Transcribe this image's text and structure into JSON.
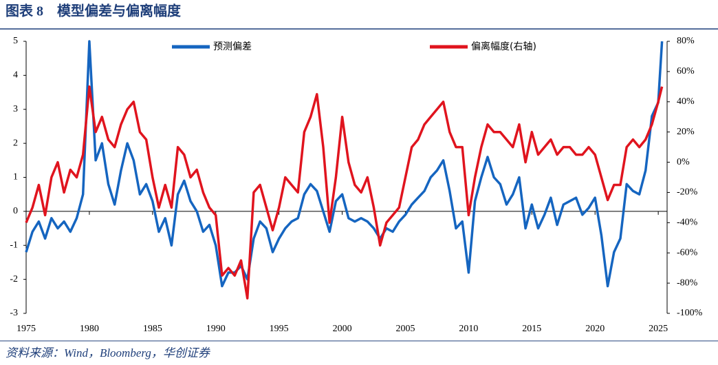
{
  "chart_data": {
    "type": "line",
    "title": "图表 8　模型偏差与偏离幅度",
    "source": "资料来源：Wind，Bloomberg，华创证券",
    "x": [
      1975,
      1975.5,
      1976,
      1976.5,
      1977,
      1977.5,
      1978,
      1978.5,
      1979,
      1979.5,
      1980,
      1980.5,
      1981,
      1981.5,
      1982,
      1982.5,
      1983,
      1983.5,
      1984,
      1984.5,
      1985,
      1985.5,
      1986,
      1986.5,
      1987,
      1987.5,
      1988,
      1988.5,
      1989,
      1989.5,
      1990,
      1990.5,
      1991,
      1991.5,
      1992,
      1992.5,
      1993,
      1993.5,
      1994,
      1994.5,
      1995,
      1995.5,
      1996,
      1996.5,
      1997,
      1997.5,
      1998,
      1998.5,
      1999,
      1999.5,
      2000,
      2000.5,
      2001,
      2001.5,
      2002,
      2002.5,
      2003,
      2003.5,
      2004,
      2004.5,
      2005,
      2005.5,
      2006,
      2006.5,
      2007,
      2007.5,
      2008,
      2008.5,
      2009,
      2009.5,
      2010,
      2010.5,
      2011,
      2011.5,
      2012,
      2012.5,
      2013,
      2013.5,
      2014,
      2014.5,
      2015,
      2015.5,
      2016,
      2016.5,
      2017,
      2017.5,
      2018,
      2018.5,
      2019,
      2019.5,
      2020,
      2020.5,
      2021,
      2021.5,
      2022,
      2022.5,
      2023,
      2023.5,
      2024,
      2024.5,
      2025,
      2025.3
    ],
    "series": [
      {
        "name": "预测偏差",
        "color": "#1565c0",
        "axis": "y",
        "values": [
          -1.2,
          -0.6,
          -0.3,
          -0.8,
          -0.2,
          -0.5,
          -0.3,
          -0.6,
          -0.2,
          0.5,
          5,
          1.5,
          2.0,
          0.8,
          0.2,
          1.2,
          2.0,
          1.5,
          0.5,
          0.8,
          0.3,
          -0.6,
          -0.2,
          -1.0,
          0.5,
          0.9,
          0.3,
          0.0,
          -0.6,
          -0.4,
          -1.0,
          -2.2,
          -1.8,
          -1.8,
          -1.6,
          -2.0,
          -0.8,
          -0.3,
          -0.5,
          -1.2,
          -0.8,
          -0.5,
          -0.3,
          -0.2,
          0.5,
          0.8,
          0.6,
          0.0,
          -0.6,
          0.3,
          0.5,
          -0.2,
          -0.3,
          -0.2,
          -0.3,
          -0.5,
          -0.8,
          -0.5,
          -0.6,
          -0.3,
          -0.1,
          0.2,
          0.4,
          0.6,
          1.0,
          1.2,
          1.5,
          0.6,
          -0.5,
          -0.3,
          -1.8,
          0.3,
          1.0,
          1.6,
          1.0,
          0.8,
          0.2,
          0.5,
          1.0,
          -0.5,
          0.2,
          -0.5,
          -0.1,
          0.4,
          -0.4,
          0.2,
          0.3,
          0.4,
          -0.1,
          0.1,
          0.4,
          -0.7,
          -2.2,
          -1.2,
          -0.8,
          0.8,
          0.6,
          0.5,
          1.2,
          2.8,
          3.2,
          5
        ]
      },
      {
        "name": "偏离幅度(右轴)",
        "color": "#e0141e",
        "axis": "y2",
        "values": [
          -40,
          -30,
          -15,
          -35,
          -10,
          0,
          -20,
          -5,
          -10,
          5,
          50,
          20,
          30,
          15,
          10,
          25,
          35,
          40,
          20,
          15,
          -10,
          -30,
          -15,
          -30,
          10,
          5,
          -10,
          -5,
          -20,
          -30,
          -35,
          -75,
          -70,
          -75,
          -65,
          -90,
          -20,
          -15,
          -30,
          -45,
          -30,
          -10,
          -15,
          -20,
          20,
          30,
          45,
          10,
          -40,
          -10,
          30,
          0,
          -15,
          -20,
          -10,
          -30,
          -55,
          -40,
          -35,
          -30,
          -10,
          10,
          15,
          25,
          30,
          35,
          40,
          20,
          10,
          10,
          -35,
          -10,
          10,
          25,
          20,
          20,
          15,
          10,
          25,
          0,
          20,
          5,
          10,
          15,
          5,
          10,
          10,
          5,
          5,
          10,
          5,
          -10,
          -25,
          -15,
          -15,
          10,
          15,
          10,
          15,
          25,
          40,
          50
        ]
      }
    ],
    "xlim": [
      1975,
      2025.7
    ],
    "xticks": [
      1975,
      1980,
      1985,
      1990,
      1995,
      2000,
      2005,
      2010,
      2015,
      2020,
      2025
    ],
    "ylim": [
      -3,
      5
    ],
    "yticks": [
      -3,
      -2,
      -1,
      0,
      1,
      2,
      3,
      4,
      5
    ],
    "y2lim": [
      -100,
      80
    ],
    "y2ticks": [
      {
        "value": -100,
        "label": "-100%"
      },
      {
        "value": -80,
        "label": "-80%"
      },
      {
        "value": -60,
        "label": "-60%"
      },
      {
        "value": -40,
        "label": "-40%"
      },
      {
        "value": -20,
        "label": "-20%"
      },
      {
        "value": 0,
        "label": "0%"
      },
      {
        "value": 20,
        "label": "20%"
      },
      {
        "value": 40,
        "label": "40%"
      },
      {
        "value": 60,
        "label": "60%"
      },
      {
        "value": 80,
        "label": "80%"
      }
    ]
  }
}
